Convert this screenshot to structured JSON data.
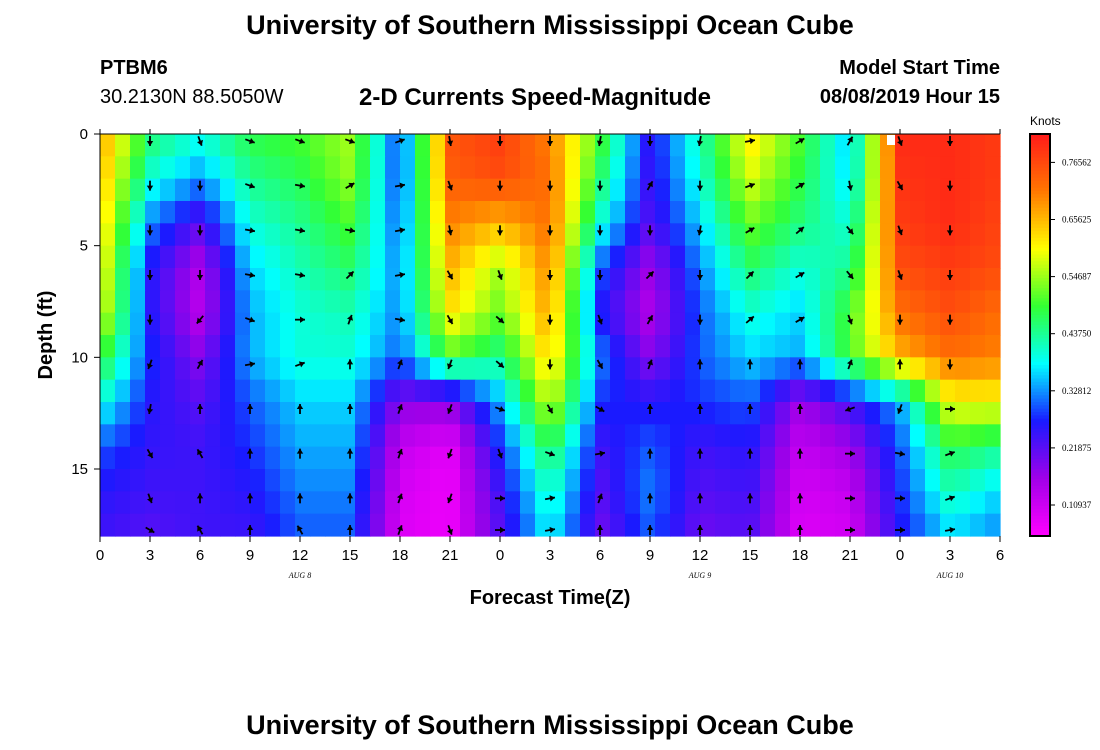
{
  "header": {
    "title": "University of Southern Mississippi Ocean Cube",
    "station": "PTBM6",
    "coords": "30.2130N 88.5050W",
    "plot_title": "2-D Currents Speed-Magnitude",
    "model_label": "Model Start Time",
    "model_time": "08/08/2019 Hour 15"
  },
  "footer": {
    "title": "University of Southern Mississippi Ocean Cube"
  },
  "chart_data": {
    "type": "heatmap",
    "title": "2-D Currents Speed-Magnitude",
    "xlabel": "Forecast Time(Z)",
    "ylabel": "Depth (ft)",
    "x_ticks": [
      "0",
      "3",
      "6",
      "9",
      "12",
      "15",
      "18",
      "21",
      "0",
      "3",
      "6",
      "9",
      "12",
      "15",
      "18",
      "21",
      "0",
      "3",
      "6"
    ],
    "x_range_hours": [
      0,
      54
    ],
    "y_ticks": [
      "0",
      "5",
      "10",
      "15"
    ],
    "y_range_ft": [
      0,
      18
    ],
    "day_labels": [
      {
        "text": "AUG  8",
        "hour": 12
      },
      {
        "text": "AUG  9",
        "hour": 36
      },
      {
        "text": "AUG  10",
        "hour": 51
      }
    ],
    "colorbar": {
      "unit_label": "Knots",
      "range": [
        0.05,
        0.82
      ],
      "ticks": [
        "0.76562",
        "0.65625",
        "0.54687",
        "0.43750",
        "0.32812",
        "0.21875",
        "0.10937"
      ],
      "tick_values": [
        0.76562,
        0.65625,
        0.54687,
        0.4375,
        0.32812,
        0.21875,
        0.10937
      ],
      "colors": [
        "#ff00ff",
        "#a000e8",
        "#1a1aff",
        "#00ffff",
        "#33ff33",
        "#ffff00",
        "#ff7700",
        "#ff1a1a"
      ]
    },
    "speed_grid": {
      "times": [
        0,
        3,
        6,
        9,
        12,
        15,
        18,
        21,
        24,
        27,
        30,
        33,
        36,
        39,
        42,
        45,
        48,
        51,
        54
      ],
      "depths": [
        0,
        2,
        4,
        6,
        8,
        10,
        12,
        14,
        16,
        18
      ],
      "values": [
        [
          0.68,
          0.46,
          0.4,
          0.48,
          0.5,
          0.55,
          0.28,
          0.75,
          0.78,
          0.7,
          0.5,
          0.25,
          0.42,
          0.62,
          0.5,
          0.35,
          0.8,
          0.8,
          0.78
        ],
        [
          0.66,
          0.4,
          0.33,
          0.44,
          0.47,
          0.54,
          0.28,
          0.74,
          0.76,
          0.72,
          0.46,
          0.24,
          0.4,
          0.58,
          0.48,
          0.36,
          0.79,
          0.8,
          0.78
        ],
        [
          0.64,
          0.32,
          0.22,
          0.4,
          0.44,
          0.5,
          0.3,
          0.7,
          0.66,
          0.72,
          0.4,
          0.22,
          0.36,
          0.52,
          0.45,
          0.4,
          0.78,
          0.8,
          0.77
        ],
        [
          0.62,
          0.26,
          0.14,
          0.36,
          0.42,
          0.46,
          0.32,
          0.66,
          0.55,
          0.7,
          0.3,
          0.16,
          0.32,
          0.46,
          0.4,
          0.44,
          0.76,
          0.78,
          0.76
        ],
        [
          0.6,
          0.26,
          0.13,
          0.34,
          0.4,
          0.42,
          0.32,
          0.62,
          0.52,
          0.68,
          0.26,
          0.14,
          0.3,
          0.4,
          0.36,
          0.5,
          0.72,
          0.76,
          0.72
        ],
        [
          0.5,
          0.28,
          0.18,
          0.34,
          0.4,
          0.4,
          0.3,
          0.5,
          0.44,
          0.64,
          0.32,
          0.18,
          0.3,
          0.36,
          0.34,
          0.5,
          0.66,
          0.72,
          0.7
        ],
        [
          0.4,
          0.26,
          0.22,
          0.3,
          0.36,
          0.36,
          0.18,
          0.18,
          0.34,
          0.58,
          0.28,
          0.26,
          0.28,
          0.3,
          0.16,
          0.24,
          0.34,
          0.6,
          0.6
        ],
        [
          0.3,
          0.25,
          0.24,
          0.28,
          0.34,
          0.34,
          0.12,
          0.08,
          0.28,
          0.48,
          0.24,
          0.3,
          0.24,
          0.26,
          0.12,
          0.16,
          0.3,
          0.48,
          0.44
        ],
        [
          0.26,
          0.24,
          0.24,
          0.26,
          0.32,
          0.32,
          0.1,
          0.07,
          0.24,
          0.42,
          0.22,
          0.32,
          0.22,
          0.24,
          0.1,
          0.12,
          0.28,
          0.42,
          0.36
        ],
        [
          0.24,
          0.22,
          0.24,
          0.24,
          0.3,
          0.3,
          0.09,
          0.07,
          0.22,
          0.38,
          0.2,
          0.3,
          0.2,
          0.22,
          0.09,
          0.1,
          0.26,
          0.36,
          0.32
        ]
      ]
    },
    "vector_grid": {
      "times": [
        3,
        6,
        9,
        12,
        15,
        18,
        21,
        24,
        27,
        30,
        33,
        36,
        39,
        42,
        45,
        48,
        51
      ],
      "depths": [
        0,
        2,
        4,
        6,
        8,
        10,
        12,
        14,
        16,
        18
      ],
      "directions_deg": [
        [
          180,
          160,
          110,
          110,
          110,
          70,
          170,
          180,
          180,
          190,
          180,
          190,
          80,
          60,
          30,
          160,
          180
        ],
        [
          180,
          180,
          110,
          100,
          60,
          80,
          160,
          180,
          180,
          180,
          30,
          180,
          70,
          60,
          170,
          150,
          180
        ],
        [
          180,
          180,
          100,
          100,
          100,
          80,
          170,
          180,
          180,
          180,
          180,
          190,
          60,
          50,
          140,
          160,
          180
        ],
        [
          180,
          180,
          100,
          100,
          45,
          80,
          150,
          160,
          180,
          180,
          45,
          180,
          45,
          60,
          140,
          160,
          180
        ],
        [
          180,
          220,
          110,
          90,
          20,
          100,
          150,
          130,
          180,
          160,
          30,
          180,
          50,
          60,
          160,
          180,
          180
        ],
        [
          200,
          30,
          80,
          70,
          0,
          20,
          200,
          130,
          180,
          150,
          20,
          0,
          0,
          0,
          20,
          0,
          180
        ],
        [
          190,
          0,
          0,
          0,
          0,
          20,
          200,
          110,
          150,
          120,
          0,
          0,
          0,
          0,
          250,
          200,
          90
        ],
        [
          150,
          330,
          0,
          0,
          0,
          20,
          200,
          160,
          110,
          80,
          0,
          0,
          0,
          0,
          90,
          100,
          70
        ],
        [
          160,
          0,
          0,
          0,
          0,
          20,
          200,
          90,
          80,
          20,
          0,
          0,
          0,
          0,
          90,
          90,
          70
        ],
        [
          120,
          330,
          0,
          330,
          0,
          20,
          160,
          90,
          80,
          0,
          0,
          0,
          0,
          0,
          90,
          90,
          80
        ]
      ]
    }
  }
}
